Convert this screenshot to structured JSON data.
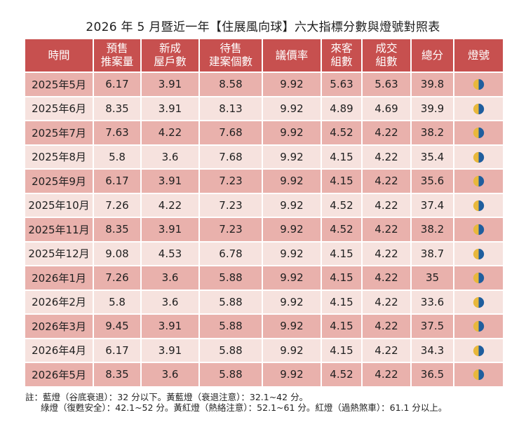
{
  "title": "2026 年 5 月暨近一年【住展風向球】六大指標分數與燈號對照表",
  "headers": {
    "time": "時間",
    "presale_1": "預售",
    "presale_2": "推案量",
    "new_1": "新成",
    "new_2": "屋戶數",
    "pending_1": "待售",
    "pending_2": "建案個數",
    "bargain": "議價率",
    "visitors_1": "來客",
    "visitors_2": "組數",
    "deals_1": "成交",
    "deals_2": "組數",
    "total": "總分",
    "light": "燈號"
  },
  "light_colors": {
    "blue": "#1f5e9e",
    "yellow": "#e8b83c"
  },
  "rows": [
    {
      "time": "2025年5月",
      "presale": "6.17",
      "new": "3.91",
      "pending": "8.58",
      "bargain": "9.92",
      "visitors": "5.63",
      "deals": "5.63",
      "total": "39.8",
      "light": "blue-yellow"
    },
    {
      "time": "2025年6月",
      "presale": "8.35",
      "new": "3.91",
      "pending": "8.13",
      "bargain": "9.92",
      "visitors": "4.89",
      "deals": "4.69",
      "total": "39.9",
      "light": "blue-yellow"
    },
    {
      "time": "2025年7月",
      "presale": "7.63",
      "new": "4.22",
      "pending": "7.68",
      "bargain": "9.92",
      "visitors": "4.52",
      "deals": "4.22",
      "total": "38.2",
      "light": "blue-yellow"
    },
    {
      "time": "2025年8月",
      "presale": "5.8",
      "new": "3.6",
      "pending": "7.68",
      "bargain": "9.92",
      "visitors": "4.15",
      "deals": "4.22",
      "total": "35.4",
      "light": "blue-yellow"
    },
    {
      "time": "2025年9月",
      "presale": "6.17",
      "new": "3.91",
      "pending": "7.23",
      "bargain": "9.92",
      "visitors": "4.15",
      "deals": "4.22",
      "total": "35.6",
      "light": "blue-yellow"
    },
    {
      "time": "2025年10月",
      "presale": "7.26",
      "new": "4.22",
      "pending": "7.23",
      "bargain": "9.92",
      "visitors": "4.52",
      "deals": "4.22",
      "total": "37.4",
      "light": "blue-yellow"
    },
    {
      "time": "2025年11月",
      "presale": "8.35",
      "new": "3.91",
      "pending": "7.23",
      "bargain": "9.92",
      "visitors": "4.52",
      "deals": "4.22",
      "total": "38.2",
      "light": "blue-yellow"
    },
    {
      "time": "2025年12月",
      "presale": "9.08",
      "new": "4.53",
      "pending": "6.78",
      "bargain": "9.92",
      "visitors": "4.15",
      "deals": "4.22",
      "total": "38.7",
      "light": "blue-yellow"
    },
    {
      "time": "2026年1月",
      "presale": "7.26",
      "new": "3.6",
      "pending": "5.88",
      "bargain": "9.92",
      "visitors": "4.15",
      "deals": "4.22",
      "total": "35",
      "light": "blue-yellow"
    },
    {
      "time": "2026年2月",
      "presale": "5.8",
      "new": "3.6",
      "pending": "5.88",
      "bargain": "9.92",
      "visitors": "4.15",
      "deals": "4.22",
      "total": "33.6",
      "light": "blue-yellow"
    },
    {
      "time": "2026年3月",
      "presale": "9.45",
      "new": "3.91",
      "pending": "5.88",
      "bargain": "9.92",
      "visitors": "4.15",
      "deals": "4.22",
      "total": "37.5",
      "light": "blue-yellow"
    },
    {
      "time": "2026年4月",
      "presale": "6.17",
      "new": "3.91",
      "pending": "5.88",
      "bargain": "9.92",
      "visitors": "4.15",
      "deals": "4.22",
      "total": "34.3",
      "light": "blue-yellow"
    },
    {
      "time": "2026年5月",
      "presale": "8.35",
      "new": "3.6",
      "pending": "5.88",
      "bargain": "9.92",
      "visitors": "4.52",
      "deals": "4.22",
      "total": "36.5",
      "light": "blue-yellow"
    }
  ],
  "notes": {
    "line1": "註：藍燈（谷底衰退）：32 分以下。黃藍燈（衰退注意）：32.1~42 分。",
    "line2": "綠燈（復甦安全）：42.1~52 分。黃紅燈（熱絡注意）：52.1~61 分。紅燈（過熱煞車）：61.1 分以上。"
  }
}
